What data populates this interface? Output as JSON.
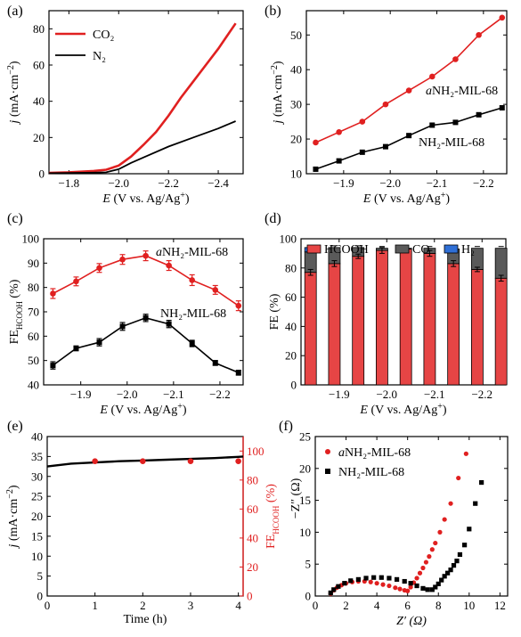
{
  "colors": {
    "red": "#e02020",
    "black": "#000000",
    "bar_hcooh": "#e64545",
    "bar_co": "#5a5a5a",
    "bar_h2": "#2f6fd6"
  },
  "chart_data": [
    {
      "id": "a",
      "type": "line",
      "panel_label": "(a)",
      "xlabel": "E (V vs. Ag/Ag⁺)",
      "ylabel": "j (mA·cm⁻²)",
      "xlim": [
        -1.72,
        -2.5
      ],
      "ylim": [
        0,
        90
      ],
      "xticks": [
        -1.8,
        -2.0,
        -2.2,
        -2.4
      ],
      "xticklabels": [
        "−1.8",
        "−2.0",
        "−2.2",
        "−2.4"
      ],
      "yticks": [
        0,
        20,
        40,
        60,
        80
      ],
      "legend_position": "top-left",
      "series": [
        {
          "name": "CO₂",
          "color": "red",
          "x": [
            -1.72,
            -1.8,
            -1.9,
            -1.95,
            -2.0,
            -2.05,
            -2.1,
            -2.15,
            -2.2,
            -2.25,
            -2.3,
            -2.35,
            -2.4,
            -2.47
          ],
          "y": [
            0.5,
            0.8,
            1.5,
            2.2,
            4.5,
            9.5,
            16,
            23,
            32,
            42,
            51,
            60,
            69,
            83
          ]
        },
        {
          "name": "N₂",
          "color": "black",
          "x": [
            -1.72,
            -1.8,
            -1.9,
            -1.95,
            -2.0,
            -2.05,
            -2.1,
            -2.2,
            -2.3,
            -2.4,
            -2.47
          ],
          "y": [
            0.3,
            0.4,
            0.6,
            0.8,
            2.5,
            6,
            9,
            15,
            20,
            25,
            29
          ]
        }
      ]
    },
    {
      "id": "b",
      "type": "line",
      "panel_label": "(b)",
      "xlabel": "E (V vs. Ag/Ag⁺)",
      "ylabel": "j (mA·cm⁻²)",
      "xlim": [
        -1.82,
        -2.25
      ],
      "ylim": [
        10,
        57
      ],
      "xticks": [
        -1.9,
        -2.0,
        -2.1,
        -2.2
      ],
      "xticklabels": [
        "−1.9",
        "−2.0",
        "−2.1",
        "−2.2"
      ],
      "yticks": [
        10,
        20,
        30,
        40,
        50
      ],
      "series": [
        {
          "name": "aNH₂-MIL-68",
          "color": "red",
          "marker": "circle",
          "x": [
            -1.84,
            -1.89,
            -1.94,
            -1.99,
            -2.04,
            -2.09,
            -2.14,
            -2.19,
            -2.24
          ],
          "y": [
            19,
            22,
            25,
            30,
            34,
            38,
            43,
            50,
            55
          ]
        },
        {
          "name": "NH₂-MIL-68",
          "color": "black",
          "marker": "square",
          "x": [
            -1.84,
            -1.89,
            -1.94,
            -1.99,
            -2.04,
            -2.09,
            -2.14,
            -2.19,
            -2.24
          ],
          "y": [
            11.3,
            13.7,
            16.2,
            17.8,
            21,
            24,
            24.8,
            27,
            29
          ]
        }
      ],
      "annotations": [
        "aNH₂-MIL-68",
        "NH₂-MIL-68"
      ]
    },
    {
      "id": "c",
      "type": "line",
      "panel_label": "(c)",
      "xlabel": "E (V vs. Ag/Ag⁺)",
      "ylabel": "FE_HCOOH (%)",
      "xlim": [
        -1.82,
        -2.25
      ],
      "ylim": [
        40,
        100
      ],
      "xticks": [
        -1.9,
        -2.0,
        -2.1,
        -2.2
      ],
      "xticklabels": [
        "−1.9",
        "−2.0",
        "−2.1",
        "−2.2"
      ],
      "yticks": [
        40,
        50,
        60,
        70,
        80,
        90,
        100
      ],
      "series": [
        {
          "name": "aNH₂-MIL-68",
          "color": "red",
          "marker": "circle",
          "x": [
            -1.84,
            -1.89,
            -1.94,
            -1.99,
            -2.04,
            -2.09,
            -2.14,
            -2.19,
            -2.24
          ],
          "y": [
            77.5,
            82.5,
            88,
            91.5,
            93,
            89,
            83,
            79,
            72.5
          ],
          "err": [
            2,
            1.8,
            1.8,
            2,
            2,
            2,
            2.2,
            1.8,
            2
          ]
        },
        {
          "name": "NH₂-MIL-68",
          "color": "black",
          "marker": "square",
          "x": [
            -1.84,
            -1.89,
            -1.94,
            -1.99,
            -2.04,
            -2.09,
            -2.14,
            -2.19,
            -2.24
          ],
          "y": [
            48,
            55,
            57.5,
            64,
            67.5,
            65,
            57,
            49,
            45
          ],
          "err": [
            1.5,
            1,
            1.5,
            1.6,
            1.5,
            1.5,
            1.3,
            1,
            1
          ]
        }
      ],
      "annotations": [
        "aNH₂-MIL-68",
        "NH₂-MIL-68"
      ]
    },
    {
      "id": "d",
      "type": "bar",
      "stacked": true,
      "panel_label": "(d)",
      "xlabel": "E (V vs. Ag/Ag⁺)",
      "ylabel": "FE (%)",
      "xlim": [
        -1.82,
        -2.25
      ],
      "ylim": [
        0,
        100
      ],
      "xticks": [
        -1.9,
        -2.0,
        -2.1,
        -2.2
      ],
      "xticklabels": [
        "−1.9",
        "−2.0",
        "−2.1",
        "−2.2"
      ],
      "yticks": [
        0,
        20,
        40,
        60,
        80,
        100
      ],
      "legend_position": "top",
      "x": [
        -1.84,
        -1.89,
        -1.94,
        -1.99,
        -2.04,
        -2.09,
        -2.14,
        -2.19,
        -2.24
      ],
      "series": [
        {
          "name": "HCOOH",
          "color": "bar_hcooh",
          "values": [
            77,
            83,
            88,
            92,
            93,
            90,
            83,
            79,
            73
          ],
          "err": [
            2,
            2,
            1.5,
            2,
            1.5,
            2,
            2,
            1.5,
            2
          ]
        },
        {
          "name": "CO",
          "color": "bar_co",
          "values": [
            14,
            11,
            6,
            1.5,
            0.5,
            3.5,
            10,
            14.5,
            20.5
          ]
        },
        {
          "name": "H₂",
          "color": "bar_h2",
          "values": [
            3,
            0,
            0,
            0,
            0,
            0,
            0,
            0,
            0
          ]
        }
      ]
    },
    {
      "id": "e",
      "type": "line",
      "panel_label": "(e)",
      "xlabel": "Time (h)",
      "ylabel": "j (mA·cm⁻²)",
      "ylabel_right": "FE_HCOOH (%)",
      "xlim": [
        0,
        4.1
      ],
      "ylim": [
        0,
        40
      ],
      "ylim_right": [
        0,
        110
      ],
      "xticks": [
        0,
        1,
        2,
        3,
        4
      ],
      "yticks": [
        0,
        5,
        10,
        15,
        20,
        25,
        30,
        35,
        40
      ],
      "yticks_right": [
        0,
        20,
        40,
        60,
        80,
        100
      ],
      "series": [
        {
          "name": "j",
          "color": "black",
          "x": [
            0,
            0.5,
            1,
            1.5,
            2,
            2.5,
            3,
            3.5,
            4,
            4.1
          ],
          "y": [
            32.5,
            33.2,
            33.5,
            33.8,
            34,
            34.2,
            34.4,
            34.6,
            34.9,
            35
          ]
        },
        {
          "name": "FE_HCOOH",
          "color": "red",
          "marker": "circle",
          "axis": "right",
          "x": [
            1,
            2,
            3,
            4
          ],
          "y": [
            93,
            93,
            93,
            93
          ]
        }
      ]
    },
    {
      "id": "f",
      "type": "scatter",
      "panel_label": "(f)",
      "xlabel": "Z′ (Ω)",
      "ylabel": "−Z″ (Ω)",
      "xlim": [
        0,
        12.5
      ],
      "ylim": [
        0,
        25
      ],
      "xticks": [
        0,
        2,
        4,
        6,
        8,
        10,
        12
      ],
      "yticks": [
        0,
        5,
        10,
        15,
        20,
        25
      ],
      "legend_position": "top-left",
      "series": [
        {
          "name": "aNH₂-MIL-68",
          "color": "red",
          "marker": "circle",
          "x": [
            1.0,
            1.2,
            1.4,
            1.7,
            2.0,
            2.4,
            2.8,
            3.2,
            3.6,
            4.0,
            4.4,
            4.8,
            5.2,
            5.5,
            5.8,
            6.0,
            6.2,
            6.4,
            6.6,
            6.8,
            7.0,
            7.2,
            7.4,
            7.6,
            7.8,
            8.1,
            8.4,
            8.8,
            9.3,
            9.8
          ],
          "y": [
            0.4,
            0.9,
            1.3,
            1.7,
            2.0,
            2.2,
            2.3,
            2.3,
            2.2,
            2.0,
            1.8,
            1.6,
            1.3,
            1.1,
            0.9,
            0.8,
            1.4,
            2.1,
            2.8,
            3.6,
            4.4,
            5.3,
            6.2,
            7.3,
            8.3,
            10.0,
            12.0,
            14.5,
            18.5,
            22.3
          ]
        },
        {
          "name": "NH₂-MIL-68",
          "color": "black",
          "marker": "square",
          "x": [
            1.0,
            1.2,
            1.5,
            1.9,
            2.3,
            2.8,
            3.3,
            3.8,
            4.3,
            4.8,
            5.3,
            5.8,
            6.2,
            6.6,
            7.0,
            7.3,
            7.6,
            7.8,
            8.0,
            8.2,
            8.4,
            8.6,
            8.8,
            9.0,
            9.2,
            9.4,
            9.7,
            10.0,
            10.4,
            10.8
          ],
          "y": [
            0.5,
            1.0,
            1.5,
            2.0,
            2.4,
            2.6,
            2.8,
            2.9,
            2.9,
            2.8,
            2.6,
            2.3,
            2.0,
            1.6,
            1.2,
            1.0,
            1.0,
            1.4,
            1.9,
            2.5,
            3.1,
            3.6,
            4.1,
            4.8,
            5.5,
            6.5,
            8.0,
            10.5,
            14.5,
            17.8
          ]
        }
      ]
    }
  ]
}
